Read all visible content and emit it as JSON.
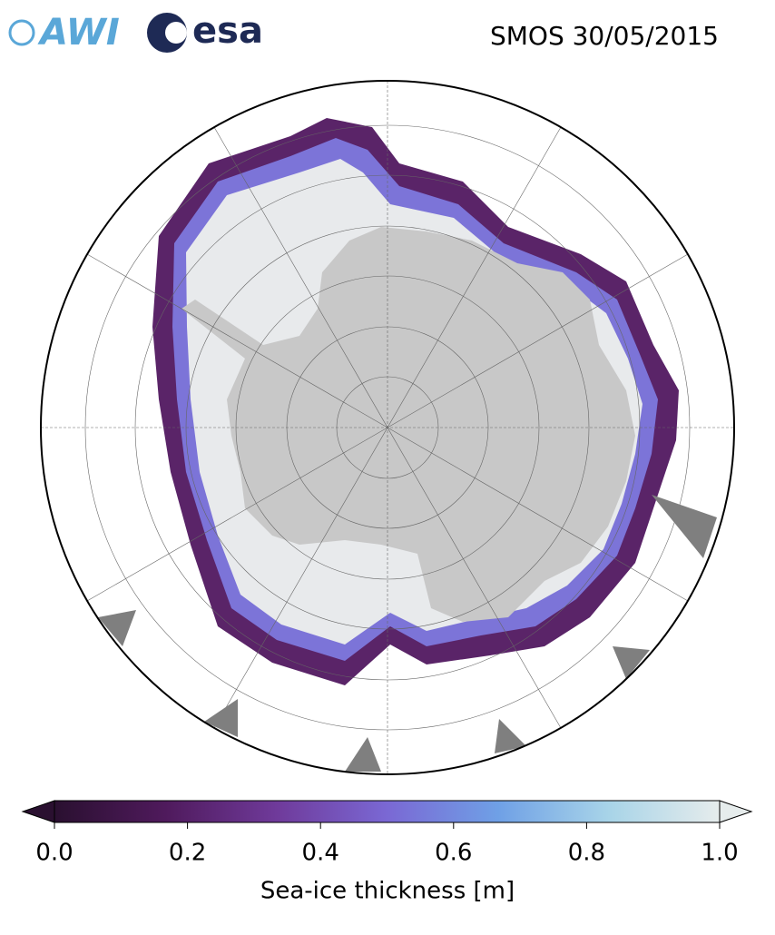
{
  "header": {
    "logos": [
      "AWI",
      "esa"
    ],
    "title": "SMOS 30/05/2015"
  },
  "colorbar": {
    "label": "Sea-ice thickness [m]",
    "lim": [
      0,
      1
    ],
    "ticks": [
      {
        "value": 0,
        "label": "0.0"
      },
      {
        "value": 0.2,
        "label": "0.2"
      },
      {
        "value": 0.4,
        "label": "0.4"
      },
      {
        "value": 0.6,
        "label": "0.6"
      },
      {
        "value": 0.8,
        "label": "0.8"
      },
      {
        "value": 1,
        "label": "1.0"
      }
    ],
    "colors": [
      "#2a1030",
      "#4f1a5c",
      "#6f3a9a",
      "#7a68d4",
      "#6fa0e6",
      "#a8d4e8",
      "#e6ecec"
    ]
  }
}
